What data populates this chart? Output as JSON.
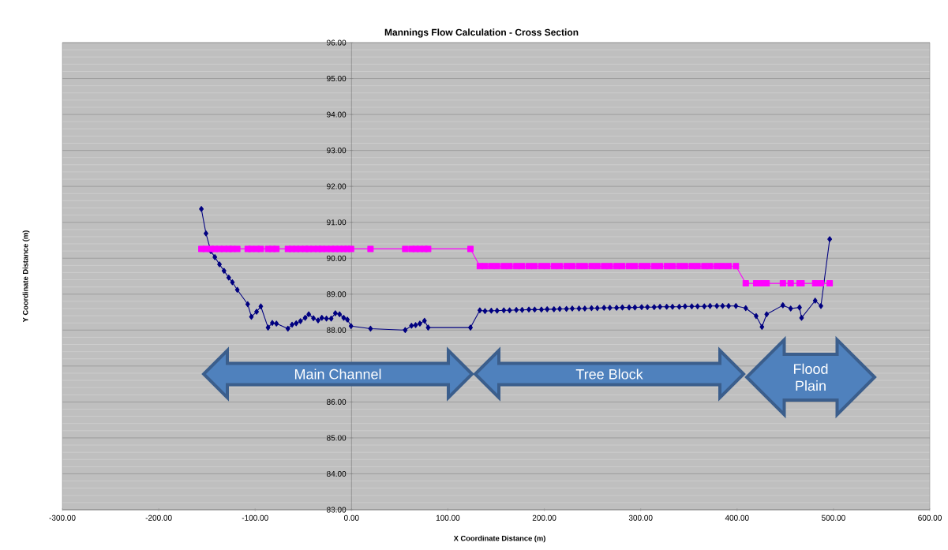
{
  "chart_data": {
    "type": "line",
    "title": "Mannings Flow Calculation - Cross Section",
    "xlabel": "X Coordinate Distance (m)",
    "ylabel": "Y Coordinate Distance (m)",
    "x": [
      -155.8,
      -151,
      -146,
      -141.8,
      -137,
      -132.3,
      -127.4,
      -123.6,
      -118.5,
      -107.7,
      -103.9,
      -98.5,
      -94.1,
      -86.6,
      -82.2,
      -77.9,
      -66,
      -61.7,
      -57.4,
      -53,
      -48.1,
      -44.4,
      -39.5,
      -34.7,
      -30.8,
      -26,
      -21.1,
      -16.8,
      -12.4,
      -8.1,
      -4.3,
      -0.5,
      19.7,
      55.7,
      62.2,
      66.5,
      70.9,
      75.7,
      79.5,
      123.4,
      133.1,
      138.5,
      145,
      151,
      158,
      164,
      171,
      177,
      184,
      190,
      197,
      203,
      210,
      216,
      223,
      229,
      236,
      242,
      249,
      255,
      262,
      268,
      275,
      281,
      288,
      294,
      301,
      307,
      314,
      320,
      327,
      333,
      340,
      346,
      353,
      359,
      366,
      372,
      379,
      385,
      391.2,
      398.8,
      409,
      419.8,
      425.8,
      430.7,
      447.5,
      455.6,
      464.8,
      466.9,
      481,
      487,
      496.1
    ],
    "series": [
      {
        "color": "#000080",
        "marker": "diamond",
        "values": [
          91.37,
          90.69,
          90.2,
          90.03,
          89.83,
          89.65,
          89.46,
          89.33,
          89.12,
          88.72,
          88.37,
          88.51,
          88.66,
          88.07,
          88.2,
          88.18,
          88.04,
          88.15,
          88.19,
          88.25,
          88.34,
          88.44,
          88.33,
          88.27,
          88.34,
          88.32,
          88.32,
          88.47,
          88.44,
          88.34,
          88.29,
          88.11,
          88.04,
          88,
          88.12,
          88.14,
          88.18,
          88.26,
          88.07,
          88.07,
          88.55,
          88.53,
          88.54,
          88.54,
          88.55,
          88.55,
          88.56,
          88.56,
          88.57,
          88.57,
          88.57,
          88.58,
          88.58,
          88.59,
          88.59,
          88.6,
          88.6,
          88.6,
          88.61,
          88.61,
          88.62,
          88.62,
          88.62,
          88.63,
          88.63,
          88.63,
          88.64,
          88.64,
          88.64,
          88.65,
          88.65,
          88.65,
          88.65,
          88.66,
          88.66,
          88.66,
          88.66,
          88.67,
          88.67,
          88.67,
          88.67,
          88.67,
          88.61,
          88.39,
          88.09,
          88.44,
          88.69,
          88.6,
          88.63,
          88.34,
          88.82,
          88.67,
          90.53
        ]
      },
      {
        "color": "#ff00ff",
        "marker": "square",
        "values": [
          90.26,
          90.26,
          90.26,
          90.26,
          90.26,
          90.26,
          90.26,
          90.26,
          90.26,
          90.26,
          90.26,
          90.26,
          90.26,
          90.26,
          90.26,
          90.26,
          90.26,
          90.26,
          90.26,
          90.26,
          90.26,
          90.26,
          90.26,
          90.26,
          90.26,
          90.26,
          90.26,
          90.26,
          90.26,
          90.26,
          90.26,
          90.26,
          90.26,
          90.26,
          90.26,
          90.26,
          90.26,
          90.26,
          90.26,
          90.26,
          89.78,
          89.78,
          89.78,
          89.78,
          89.78,
          89.78,
          89.78,
          89.78,
          89.78,
          89.78,
          89.78,
          89.78,
          89.78,
          89.78,
          89.78,
          89.78,
          89.78,
          89.78,
          89.78,
          89.78,
          89.78,
          89.78,
          89.78,
          89.78,
          89.78,
          89.78,
          89.78,
          89.78,
          89.78,
          89.78,
          89.78,
          89.78,
          89.78,
          89.78,
          89.78,
          89.78,
          89.78,
          89.78,
          89.78,
          89.78,
          89.78,
          89.78,
          89.3,
          89.3,
          89.3,
          89.3,
          89.3,
          89.3,
          89.3,
          89.3,
          89.3,
          89.3,
          89.3
        ]
      }
    ],
    "xlim": [
      -300,
      600
    ],
    "ylim": [
      83,
      96
    ],
    "xticks": [
      {
        "value": -300,
        "label": "-300.00"
      },
      {
        "value": -200,
        "label": "-200.00"
      },
      {
        "value": -100,
        "label": "-100.00"
      },
      {
        "value": 0,
        "label": "0.00"
      },
      {
        "value": 100,
        "label": "100.00"
      },
      {
        "value": 200,
        "label": "200.00"
      },
      {
        "value": 300,
        "label": "300.00"
      },
      {
        "value": 400,
        "label": "400.00"
      },
      {
        "value": 500,
        "label": "500.00"
      },
      {
        "value": 600,
        "label": "600.00"
      }
    ],
    "yticks": [
      {
        "value": 83,
        "label": "83.00"
      },
      {
        "value": 84,
        "label": "84.00"
      },
      {
        "value": 85,
        "label": "85.00"
      },
      {
        "value": 86,
        "label": "86.00"
      },
      {
        "value": 87,
        "label": null
      },
      {
        "value": 88,
        "label": "88.00"
      },
      {
        "value": 89,
        "label": "89.00"
      },
      {
        "value": 90,
        "label": "90.00"
      },
      {
        "value": 91,
        "label": "91.00"
      },
      {
        "value": 92,
        "label": "92.00"
      },
      {
        "value": 93,
        "label": "93.00"
      },
      {
        "value": 94,
        "label": "94.00"
      },
      {
        "value": 95,
        "label": "95.00"
      },
      {
        "value": 96,
        "label": "96.00"
      }
    ],
    "grid": "y",
    "line_style": "solid",
    "annotations": [
      "Main Channel",
      "Tree Block",
      "Flood Plain"
    ]
  }
}
